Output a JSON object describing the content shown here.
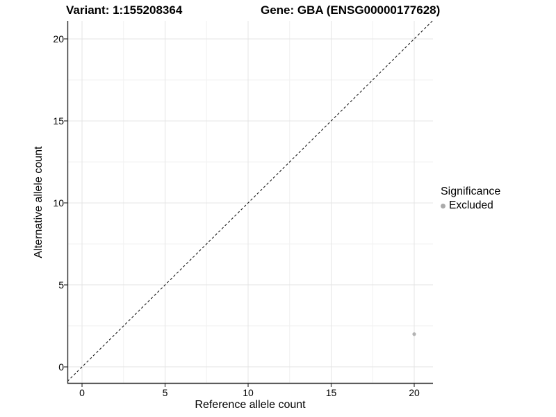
{
  "chart_data": {
    "type": "scatter",
    "title_left": "Variant: 1:155208364",
    "title_right": "Gene: GBA (ENSG00000177628)",
    "xlabel": "Reference allele count",
    "ylabel": "Alternative allele count",
    "xlim": [
      -0.88,
      21.13
    ],
    "ylim": [
      -1.02,
      21.1
    ],
    "x_ticks": [
      0,
      5,
      10,
      15,
      20
    ],
    "y_ticks": [
      0,
      5,
      10,
      15,
      20
    ],
    "grid": true,
    "minor_grid": true,
    "legend_position": "right",
    "points": [
      {
        "x": 20,
        "y": 2,
        "series": "Excluded"
      }
    ],
    "reference_line": {
      "kind": "identity",
      "slope": 1,
      "intercept": 0,
      "style": "dashed",
      "color": "#1a1a1a"
    },
    "colors": {
      "point_excluded": "#b3b3b3",
      "major_grid": "#e4e4e4",
      "minor_grid": "#f1f1f1",
      "axis_line": "#2f2f2f",
      "tick_mark": "#333333"
    }
  },
  "legend": {
    "title": "Significance",
    "items": [
      {
        "label": "Excluded",
        "color": "#aaaaaa"
      }
    ]
  }
}
